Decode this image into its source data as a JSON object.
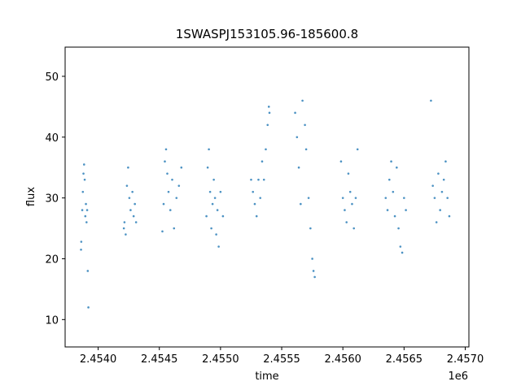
{
  "chart_data": {
    "type": "scatter",
    "title": "1SWASPJ153105.96-185600.8",
    "xlabel": "time",
    "ylabel": "flux",
    "x_offset_label": "1e6",
    "xlim": [
      2453730,
      2457030
    ],
    "ylim": [
      5.5,
      54.8
    ],
    "x_ticks": [
      2.454,
      2.4545,
      2.455,
      2.4555,
      2.456,
      2.4565,
      2.457
    ],
    "x_tick_labels": [
      "2.4540",
      "2.4545",
      "2.4550",
      "2.4555",
      "2.4560",
      "2.4565",
      "2.4570"
    ],
    "y_ticks": [
      10,
      20,
      30,
      40,
      50
    ],
    "y_tick_labels": [
      "10",
      "20",
      "30",
      "40",
      "50"
    ],
    "grid": false,
    "legend": "none",
    "color": "#1f77b4",
    "series": [
      {
        "points_summary": "dense clusters of observation seasons; approximate (time, flux) samples",
        "x": [
          2453860,
          2453862,
          2453870,
          2453875,
          2453880,
          2453885,
          2453890,
          2453895,
          2453900,
          2453905,
          2453910,
          2453915,
          2453920,
          2454210,
          2454215,
          2454225,
          2454235,
          2454245,
          2454255,
          2454265,
          2454280,
          2454290,
          2454300,
          2454310,
          2454525,
          2454535,
          2454545,
          2454555,
          2454565,
          2454575,
          2454590,
          2454605,
          2454620,
          2454640,
          2454660,
          2454680,
          2454885,
          2454895,
          2454905,
          2454915,
          2454925,
          2454935,
          2454945,
          2454955,
          2454965,
          2454975,
          2454985,
          2455000,
          2455020,
          2455250,
          2455265,
          2455280,
          2455295,
          2455310,
          2455325,
          2455340,
          2455355,
          2455370,
          2455385,
          2455395,
          2455400,
          2455610,
          2455625,
          2455640,
          2455655,
          2455670,
          2455690,
          2455700,
          2455720,
          2455735,
          2455750,
          2455760,
          2455770,
          2455985,
          2456000,
          2456015,
          2456030,
          2456045,
          2456060,
          2456075,
          2456090,
          2456105,
          2456120,
          2456350,
          2456365,
          2456380,
          2456395,
          2456410,
          2456425,
          2456440,
          2456455,
          2456470,
          2456485,
          2456500,
          2456515,
          2456720,
          2456735,
          2456750,
          2456765,
          2456780,
          2456795,
          2456810,
          2456825,
          2456840,
          2456855,
          2456870
        ],
        "y": [
          21.5,
          22.8,
          28,
          31,
          34,
          35.5,
          33,
          27,
          29,
          26,
          28,
          18,
          12,
          25,
          26,
          24,
          32,
          35,
          30,
          28,
          31,
          27,
          29,
          26,
          24.5,
          29,
          36,
          38,
          34,
          31,
          28,
          33,
          25,
          30,
          32,
          35,
          27,
          35,
          38,
          31,
          25,
          29,
          33,
          30,
          24,
          28,
          22,
          31,
          27,
          33,
          31,
          29,
          27,
          33,
          30,
          36,
          33,
          38,
          42,
          45,
          44,
          44,
          40,
          35,
          29,
          46,
          42,
          38,
          30,
          25,
          20,
          18,
          17,
          36,
          30,
          28,
          26,
          34,
          31,
          29,
          25,
          30,
          38,
          30,
          28,
          33,
          36,
          31,
          27,
          35,
          25,
          22,
          21,
          30,
          28,
          46,
          32,
          30,
          26,
          34,
          28,
          31,
          33,
          36,
          30,
          27
        ]
      }
    ]
  }
}
